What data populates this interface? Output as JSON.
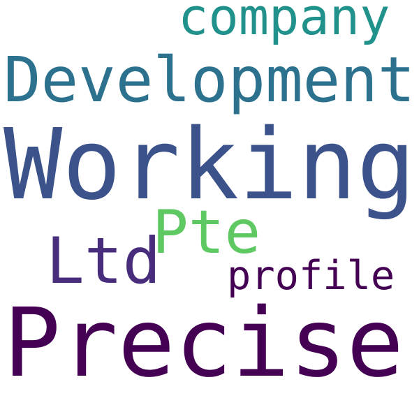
{
  "words": [
    {
      "id": "company",
      "text": "company",
      "color": "#21918c"
    },
    {
      "id": "development",
      "text": "Development",
      "color": "#2c728e"
    },
    {
      "id": "working",
      "text": "Working",
      "color": "#3b528b"
    },
    {
      "id": "pte",
      "text": "Pte",
      "color": "#5ec962"
    },
    {
      "id": "ltd",
      "text": "Ltd",
      "color": "#472d7b"
    },
    {
      "id": "profile",
      "text": "profile",
      "color": "#440154"
    },
    {
      "id": "precise",
      "text": "Precise",
      "color": "#440154"
    }
  ]
}
